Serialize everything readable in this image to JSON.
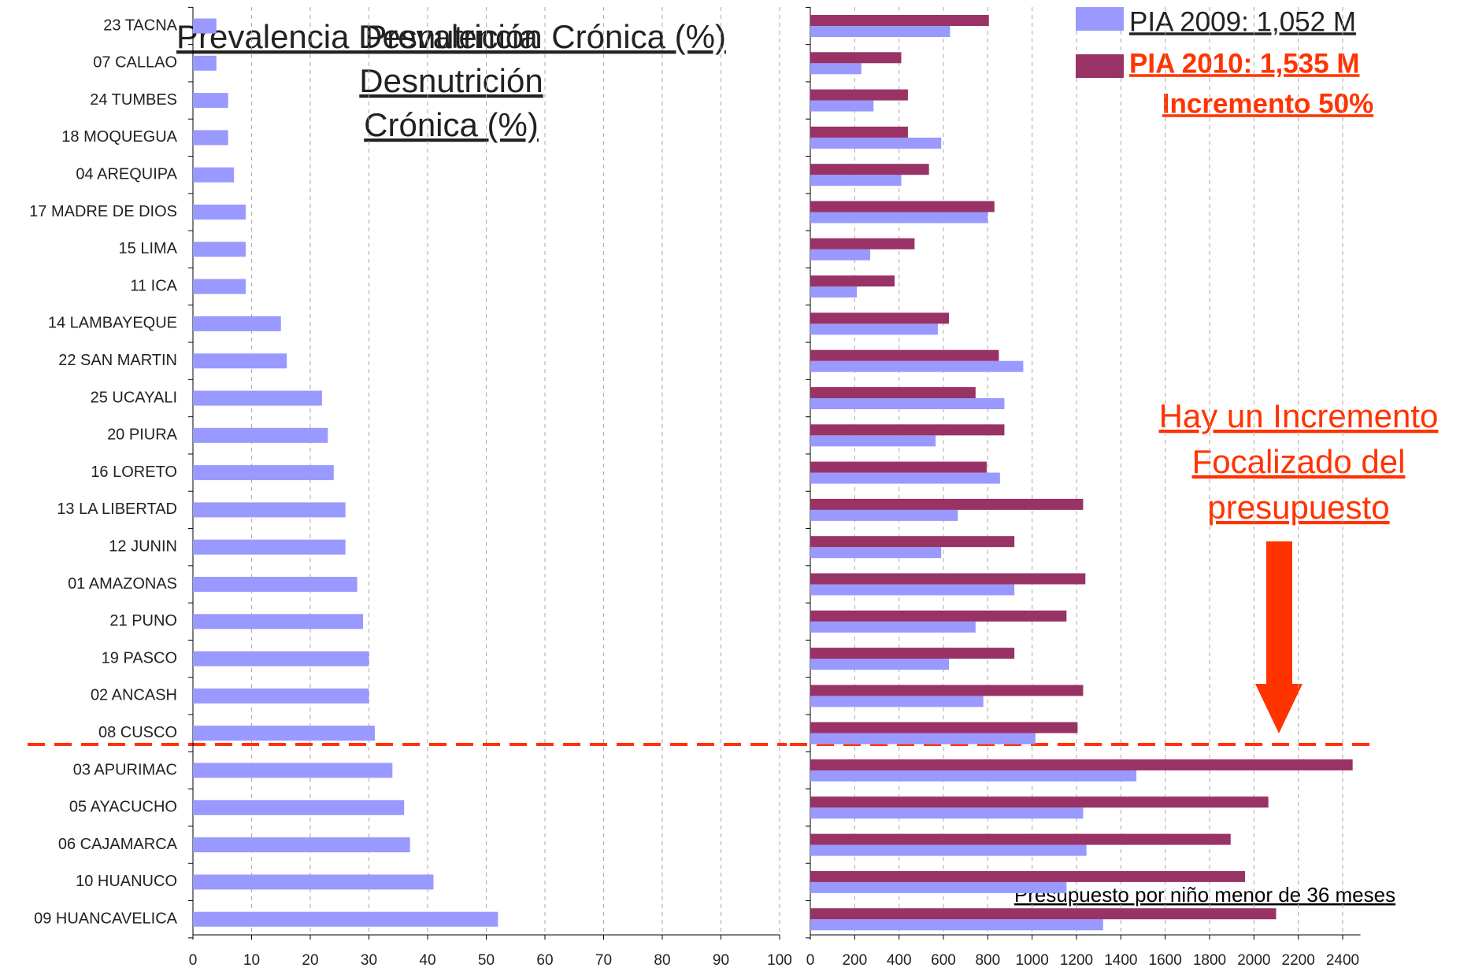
{
  "chart_data": [
    {
      "type": "bar",
      "orientation": "horizontal",
      "title": "Prevalencia Desnutrición Crónica (%)",
      "categories": [
        "23 TACNA",
        "07 CALLAO",
        "24 TUMBES",
        "18 MOQUEGUA",
        "04 AREQUIPA",
        "17 MADRE DE DIOS",
        "15 LIMA",
        "11 ICA",
        "14 LAMBAYEQUE",
        "22 SAN MARTIN",
        "25 UCAYALI",
        "20 PIURA",
        "16 LORETO",
        "13 LA LIBERTAD",
        "12 JUNIN",
        "01 AMAZONAS",
        "21 PUNO",
        "19 PASCO",
        "02 ANCASH",
        "08 CUSCO",
        "03 APURIMAC",
        "05 AYACUCHO",
        "06 CAJAMARCA",
        "10 HUANUCO",
        "09 HUANCAVELICA"
      ],
      "values": [
        4,
        4,
        6,
        6,
        7,
        9,
        9,
        9,
        15,
        16,
        22,
        23,
        24,
        26,
        26,
        28,
        29,
        30,
        30,
        31,
        34,
        36,
        37,
        41,
        52
      ],
      "color": "#9999ff",
      "xlim": [
        0,
        100
      ],
      "xticks": [
        0,
        10,
        20,
        30,
        40,
        50,
        60,
        70,
        80,
        90,
        100
      ],
      "grid": true
    },
    {
      "type": "bar",
      "orientation": "horizontal",
      "series": [
        {
          "name": "PIA 2009: 1,052 M",
          "color": "#9999ff",
          "values": [
            630,
            230,
            285,
            590,
            410,
            800,
            270,
            210,
            575,
            960,
            875,
            565,
            855,
            665,
            590,
            920,
            745,
            625,
            780,
            1015,
            1470,
            1230,
            1245,
            1155,
            1320
          ]
        },
        {
          "name": "PIA 2010: 1,535 M",
          "color": "#993366",
          "values": [
            805,
            410,
            440,
            440,
            535,
            830,
            470,
            380,
            625,
            850,
            745,
            875,
            795,
            1230,
            920,
            1240,
            1155,
            920,
            1230,
            1205,
            2445,
            2065,
            1895,
            1960,
            2100
          ]
        }
      ],
      "annotations": [
        "Incremento 50%",
        "Hay un Incremento Focalizado del presupuesto",
        "Presupuesto por niño menor de 36 meses"
      ],
      "xlim": [
        0,
        2480
      ],
      "xticks": [
        0,
        200,
        400,
        600,
        800,
        1000,
        1200,
        1400,
        1600,
        1800,
        2000,
        2200,
        2400
      ],
      "grid": true
    }
  ]
}
